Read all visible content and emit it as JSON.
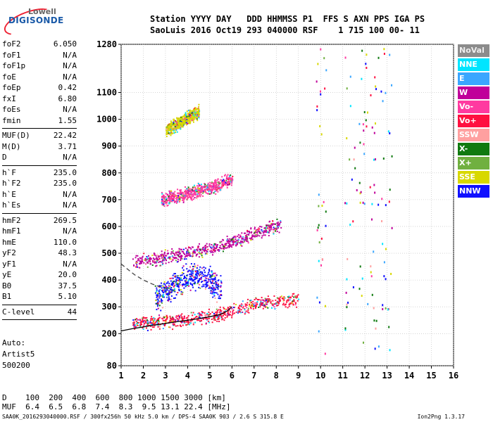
{
  "logo": {
    "top": "Lowell",
    "main": "DIGISONDE"
  },
  "header": {
    "row1": "Station YYYY DAY   DDD HHMMSS P1  FFS S AXN PPS IGA PS",
    "row2": "SaoLuis 2016 Oct19 293 040000 RSF    1 715 100 00- 11"
  },
  "params": {
    "group1": [
      {
        "name": "foF2",
        "value": "6.050"
      },
      {
        "name": "foF1",
        "value": "N/A"
      },
      {
        "name": "foF1p",
        "value": "N/A"
      },
      {
        "name": "foE",
        "value": "N/A"
      },
      {
        "name": "foEp",
        "value": "0.42"
      },
      {
        "name": "fxI",
        "value": "6.80"
      },
      {
        "name": "foEs",
        "value": "N/A"
      },
      {
        "name": "fmin",
        "value": "1.55"
      }
    ],
    "group2": [
      {
        "name": "MUF(D)",
        "value": "22.42"
      },
      {
        "name": "M(D)",
        "value": "3.71"
      },
      {
        "name": "D",
        "value": "N/A"
      }
    ],
    "group3": [
      {
        "name": "h`F",
        "value": "235.0"
      },
      {
        "name": "h`F2",
        "value": "235.0"
      },
      {
        "name": "h`E",
        "value": "N/A"
      },
      {
        "name": "h`Es",
        "value": "N/A"
      }
    ],
    "group4": [
      {
        "name": "hmF2",
        "value": "269.5"
      },
      {
        "name": "hmF1",
        "value": "N/A"
      },
      {
        "name": "hmE",
        "value": "110.0"
      },
      {
        "name": "yF2",
        "value": "48.3"
      },
      {
        "name": "yF1",
        "value": "N/A"
      },
      {
        "name": "yE",
        "value": "20.0"
      },
      {
        "name": "B0",
        "value": "37.5"
      },
      {
        "name": "B1",
        "value": "5.10"
      }
    ],
    "clevel": {
      "name": "C-level",
      "value": "44"
    }
  },
  "auto": {
    "line1": "Auto:",
    "line2": "Artist5",
    "line3": "500200"
  },
  "legend": [
    {
      "label": "NoVal",
      "color": "#8c8c8c"
    },
    {
      "label": "NNE",
      "color": "#00e5ff"
    },
    {
      "label": "E",
      "color": "#3aa6ff"
    },
    {
      "label": "W",
      "color": "#c0009a"
    },
    {
      "label": "Vo-",
      "color": "#ff3aa0"
    },
    {
      "label": "Vo+",
      "color": "#ff1040"
    },
    {
      "label": "SSW",
      "color": "#ffa0a0"
    },
    {
      "label": "X-",
      "color": "#107a10"
    },
    {
      "label": "X+",
      "color": "#70b040"
    },
    {
      "label": "SSE",
      "color": "#d8d800"
    },
    {
      "label": "NNW",
      "color": "#1010ff"
    }
  ],
  "mufline": {
    "d_row": "D    100  200  400  600  800 1000 1500 3000 [km]",
    "muf_row": "MUF  6.4  6.5  6.8  7.4  8.3  9.5 13.1 22.4 [MHz]"
  },
  "footer": {
    "left": "SAA0K_2016293040000.RSF / 300fx256h 50 kHz 5.0 km / DPS-4 SAA0K 903 / 2.6 S 315.8 E",
    "right": "Ion2Png 1.3.17"
  },
  "chart_data": {
    "type": "scatter",
    "xlabel": "",
    "ylabel": "",
    "xlim": [
      1,
      16
    ],
    "ylim": [
      80,
      1280
    ],
    "x_ticks": [
      1,
      2,
      3,
      4,
      5,
      6,
      7,
      8,
      9,
      10,
      11,
      12,
      13,
      14,
      15,
      16
    ],
    "y_ticks": [
      80,
      200,
      300,
      400,
      500,
      600,
      700,
      800,
      900,
      1000,
      1100,
      1280
    ],
    "grid": true,
    "series": [
      {
        "name": "O-trace profile (solid)",
        "style": "solid",
        "color": "#000000",
        "x": [
          1.0,
          1.5,
          2.0,
          2.5,
          3.0,
          3.5,
          4.0,
          4.5,
          5.0,
          5.5,
          5.8,
          6.0
        ],
        "y": [
          210,
          218,
          225,
          232,
          238,
          244,
          250,
          256,
          263,
          272,
          285,
          300
        ]
      },
      {
        "name": "Profile (dashed)",
        "style": "dashed",
        "color": "#444444",
        "x": [
          1.0,
          1.3,
          1.6,
          2.0,
          2.4,
          2.8,
          3.2
        ],
        "y": [
          460,
          440,
          420,
          400,
          385,
          373,
          365
        ]
      },
      {
        "name": "Main F trace",
        "style": "band",
        "color": "#ff1040",
        "x": [
          1.5,
          2.5,
          3.5,
          4.5,
          5.5,
          6.5,
          7.5,
          8.5,
          9.0
        ],
        "y": [
          240,
          245,
          250,
          260,
          275,
          300,
          320,
          325,
          330
        ]
      },
      {
        "name": "Spread F region",
        "style": "cloud",
        "color": "#1010ff",
        "x": [
          2.5,
          3.0,
          3.5,
          4.0,
          4.5,
          5.0,
          5.5
        ],
        "y": [
          330,
          360,
          390,
          410,
          420,
          400,
          360
        ]
      },
      {
        "name": "2nd hop trace",
        "style": "band",
        "color": "#c0009a",
        "x": [
          1.5,
          2.5,
          3.5,
          4.5,
          5.5,
          6.5,
          7.5,
          8.2
        ],
        "y": [
          470,
          480,
          495,
          510,
          530,
          560,
          590,
          610
        ]
      },
      {
        "name": "3rd hop trace",
        "style": "band",
        "color": "#ff3aa0",
        "x": [
          2.8,
          3.5,
          4.5,
          5.5,
          6.0
        ],
        "y": [
          700,
          715,
          735,
          760,
          780
        ]
      },
      {
        "name": "4th hop trace",
        "style": "band",
        "color": "#d8d800",
        "x": [
          3.0,
          3.5,
          4.0,
          4.5
        ],
        "y": [
          960,
          985,
          1010,
          1030
        ]
      }
    ]
  }
}
